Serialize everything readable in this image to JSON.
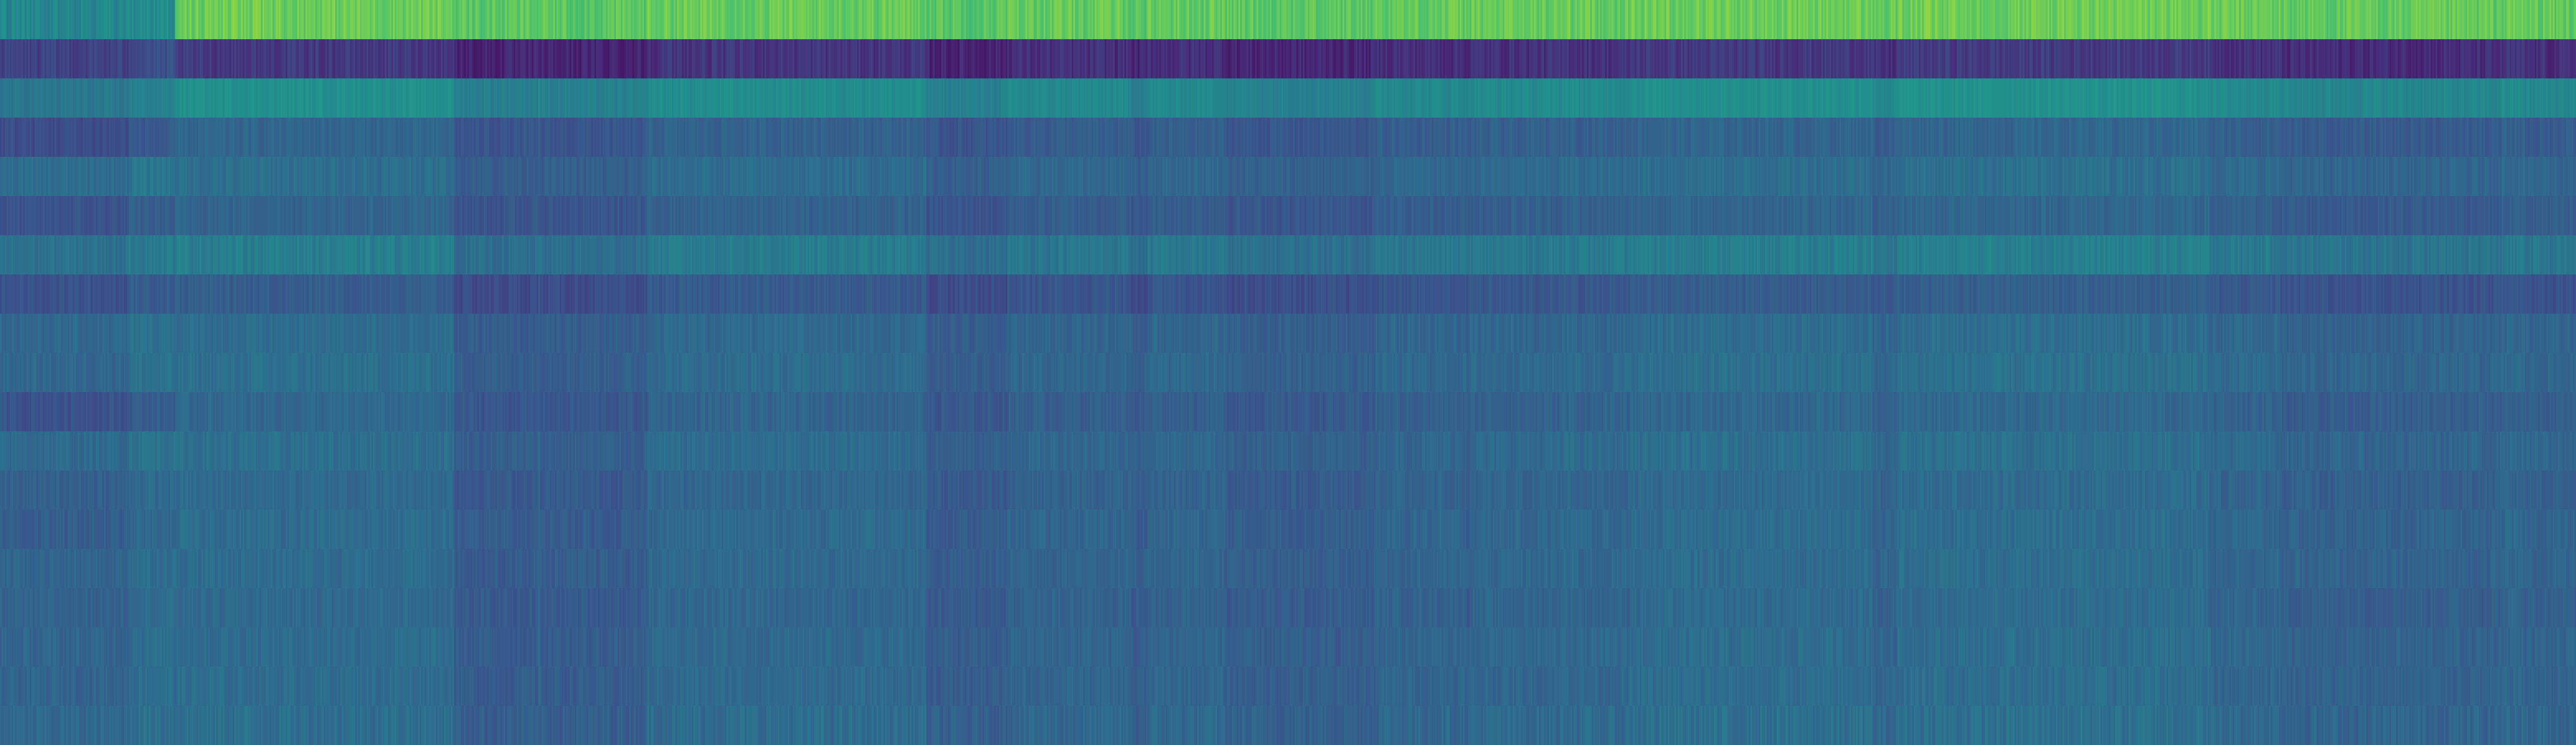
{
  "chart_data": {
    "type": "heatmap",
    "title": "",
    "xlabel": "",
    "ylabel": "",
    "colormap": "viridis",
    "color_range": [
      0,
      1
    ],
    "grid": false,
    "legend": "none",
    "rows": [
      {
        "index": 0,
        "mean": 0.76,
        "early": 0.46,
        "variation": 0.06
      },
      {
        "index": 1,
        "mean": 0.14,
        "early": 0.2,
        "variation": 0.05
      },
      {
        "index": 2,
        "mean": 0.47,
        "early": 0.4,
        "variation": 0.03
      },
      {
        "index": 3,
        "mean": 0.3,
        "early": 0.24,
        "variation": 0.04
      },
      {
        "index": 4,
        "mean": 0.34,
        "early": 0.36,
        "variation": 0.04
      },
      {
        "index": 5,
        "mean": 0.3,
        "early": 0.26,
        "variation": 0.04
      },
      {
        "index": 6,
        "mean": 0.4,
        "early": 0.38,
        "variation": 0.04
      },
      {
        "index": 7,
        "mean": 0.27,
        "early": 0.26,
        "variation": 0.04
      },
      {
        "index": 8,
        "mean": 0.33,
        "early": 0.34,
        "variation": 0.04
      },
      {
        "index": 9,
        "mean": 0.34,
        "early": 0.34,
        "variation": 0.04
      },
      {
        "index": 10,
        "mean": 0.31,
        "early": 0.26,
        "variation": 0.04
      },
      {
        "index": 11,
        "mean": 0.34,
        "early": 0.35,
        "variation": 0.04
      },
      {
        "index": 12,
        "mean": 0.32,
        "early": 0.31,
        "variation": 0.04
      },
      {
        "index": 13,
        "mean": 0.33,
        "early": 0.3,
        "variation": 0.04
      },
      {
        "index": 14,
        "mean": 0.33,
        "early": 0.33,
        "variation": 0.04
      },
      {
        "index": 15,
        "mean": 0.32,
        "early": 0.32,
        "variation": 0.04
      },
      {
        "index": 16,
        "mean": 0.33,
        "early": 0.33,
        "variation": 0.04
      },
      {
        "index": 17,
        "mean": 0.33,
        "early": 0.33,
        "variation": 0.04
      },
      {
        "index": 18,
        "mean": 0.34,
        "early": 0.34,
        "variation": 0.05
      }
    ],
    "columns": 1560
  }
}
